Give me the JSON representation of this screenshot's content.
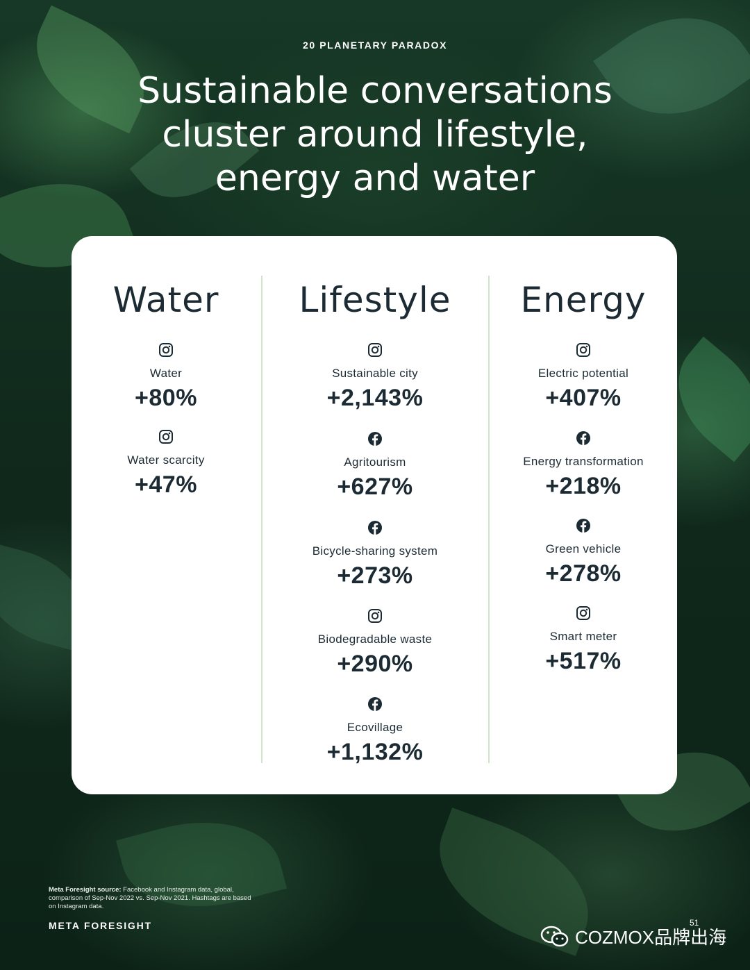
{
  "header": {
    "label": "20 PLANETARY PARADOX",
    "headline_lines": [
      "Sustainable conversations",
      "cluster around lifestyle,",
      "energy and water"
    ]
  },
  "columns": [
    {
      "title": "Water",
      "items": [
        {
          "platform": "instagram-icon",
          "label": "Water",
          "value": "+80%"
        },
        {
          "platform": "instagram-icon",
          "label": "Water scarcity",
          "value": "+47%"
        }
      ]
    },
    {
      "title": "Lifestyle",
      "items": [
        {
          "platform": "instagram-icon",
          "label": "Sustainable city",
          "value": "+2,143%"
        },
        {
          "platform": "facebook-icon",
          "label": "Agritourism",
          "value": "+627%"
        },
        {
          "platform": "facebook-icon",
          "label": "Bicycle-sharing system",
          "value": "+273%"
        },
        {
          "platform": "instagram-icon",
          "label": "Biodegradable waste",
          "value": "+290%"
        },
        {
          "platform": "facebook-icon",
          "label": "Ecovillage",
          "value": "+1,132%"
        }
      ]
    },
    {
      "title": "Energy",
      "items": [
        {
          "platform": "instagram-icon",
          "label": "Electric potential",
          "value": "+407%"
        },
        {
          "platform": "facebook-icon",
          "label": "Energy transformation",
          "value": "+218%"
        },
        {
          "platform": "facebook-icon",
          "label": "Green vehicle",
          "value": "+278%"
        },
        {
          "platform": "instagram-icon",
          "label": "Smart meter",
          "value": "+517%"
        }
      ]
    }
  ],
  "footer": {
    "source_label": "Meta Foresight source:",
    "source_text": "Facebook and Instagram data, global, comparison of Sep-Nov 2022 vs. Sep-Nov 2021. Hashtags are based on Instagram data.",
    "brand": "META FORESIGHT",
    "page_number": "51",
    "watermark": "COZMOX品牌出海"
  },
  "colors": {
    "text_dark": "#1c2b33",
    "divider": "#cfe5c9",
    "card": "#ffffff"
  }
}
